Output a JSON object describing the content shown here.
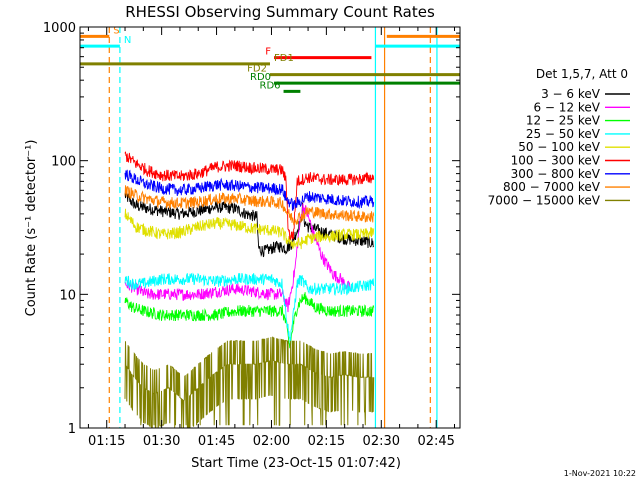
{
  "chart_data": {
    "type": "line",
    "title": "RHESSI Observing Summary Count Rates",
    "xlabel": "Start Time (23-Oct-15 01:07:42)",
    "ylabel": "Count Rate (s⁻¹ detector⁻¹)",
    "y_scale": "log",
    "ylim": [
      1,
      1000
    ],
    "y_ticks": [
      {
        "value": 1,
        "label": "1"
      },
      {
        "value": 10,
        "label": "10"
      },
      {
        "value": 100,
        "label": "100"
      },
      {
        "value": 1000,
        "label": "1000"
      }
    ],
    "xlim_minutes": [
      67.7,
      171.5
    ],
    "x_ticks": [
      {
        "minute": 75,
        "label": "01:15"
      },
      {
        "minute": 90,
        "label": "01:30"
      },
      {
        "minute": 105,
        "label": "01:45"
      },
      {
        "minute": 120,
        "label": "02:00"
      },
      {
        "minute": 135,
        "label": "02:15"
      },
      {
        "minute": 150,
        "label": "02:30"
      },
      {
        "minute": 165,
        "label": "02:45"
      }
    ],
    "legend": {
      "title": "Det 1,5,7, Att 0",
      "position": "right",
      "entries": [
        {
          "label": "3 − 6 keV",
          "color": "#000000"
        },
        {
          "label": "6 − 12 keV",
          "color": "#ff00ff"
        },
        {
          "label": "12 − 25 keV",
          "color": "#00ff00"
        },
        {
          "label": "25 − 50 keV",
          "color": "#00ffff"
        },
        {
          "label": "50 − 100 keV",
          "color": "#e0e000"
        },
        {
          "label": "100 − 300 keV",
          "color": "#ff0000"
        },
        {
          "label": "300 − 800 keV",
          "color": "#0000ff"
        },
        {
          "label": "800 − 7000 keV",
          "color": "#ff8000"
        },
        {
          "label": "7000 − 15000 keV",
          "color": "#808000"
        }
      ]
    },
    "series": [
      {
        "name": "3 − 6 keV",
        "color": "#000000",
        "x": [
          80,
          83,
          86,
          90,
          95,
          100,
          105,
          110,
          113,
          116,
          116.5,
          118,
          120,
          122,
          124,
          125.5,
          126,
          127,
          128,
          128.5,
          129,
          130,
          133,
          136,
          140,
          145,
          148
        ],
        "y": [
          55,
          46,
          44,
          42,
          40,
          42,
          45,
          44,
          40,
          38,
          22,
          21,
          22,
          23,
          22,
          24,
          26,
          30,
          35,
          45,
          35,
          32,
          30,
          28,
          26,
          25,
          24
        ]
      },
      {
        "name": "6 − 12 keV",
        "color": "#ff00ff",
        "x": [
          80,
          83,
          86,
          90,
          95,
          100,
          105,
          110,
          115,
          120,
          123,
          124.5,
          125.5,
          126.5,
          127.5,
          128.5,
          129.5,
          130.5,
          131.5,
          132.5,
          133.5,
          135,
          137,
          139,
          140,
          141.5
        ],
        "y": [
          12,
          11,
          10,
          10,
          10,
          10,
          10.5,
          11,
          10.5,
          10,
          10,
          8,
          11,
          16,
          30,
          45,
          42,
          35,
          28,
          24,
          20,
          17,
          14,
          13,
          12,
          11
        ]
      },
      {
        "name": "12 − 25 keV",
        "color": "#00ff00",
        "x": [
          80,
          82,
          85,
          90,
          95,
          100,
          105,
          110,
          115,
          120,
          123,
          124,
          125,
          126,
          127,
          128,
          129,
          132,
          136,
          140,
          145,
          148
        ],
        "y": [
          9,
          8,
          7.5,
          7,
          7,
          7,
          7,
          7.5,
          7.5,
          7.5,
          7.5,
          6,
          4,
          6,
          8,
          9,
          9.5,
          8,
          7.5,
          7.5,
          7.5,
          7.5
        ]
      },
      {
        "name": "25 − 50 keV",
        "color": "#00ffff",
        "x": [
          80,
          82,
          85,
          90,
          95,
          100,
          105,
          110,
          115,
          120,
          123,
          124,
          125,
          126,
          127,
          128,
          130,
          133,
          137,
          140,
          145,
          148
        ],
        "y": [
          13,
          12,
          12,
          13,
          13,
          13,
          12.5,
          13,
          13,
          13,
          12,
          7,
          4.5,
          7,
          12,
          13,
          11,
          11,
          11,
          11,
          11.5,
          12
        ]
      },
      {
        "name": "50 − 100 keV",
        "color": "#e0e000",
        "x": [
          80,
          83,
          86,
          90,
          95,
          100,
          105,
          110,
          115,
          120,
          123,
          124,
          126,
          128,
          130,
          133,
          136,
          140,
          145,
          148
        ],
        "y": [
          40,
          32,
          30,
          28,
          29,
          32,
          34,
          33,
          31,
          30,
          29,
          26,
          24,
          24,
          26,
          27,
          27,
          28,
          28,
          29
        ]
      },
      {
        "name": "100 − 300 keV",
        "color": "#ff0000",
        "x": [
          80,
          83,
          86,
          90,
          95,
          100,
          105,
          110,
          115,
          120,
          123,
          124,
          124.6,
          125.2,
          126,
          127,
          130,
          135,
          140,
          145,
          148
        ],
        "y": [
          110,
          95,
          85,
          78,
          76,
          80,
          90,
          92,
          88,
          86,
          85,
          70,
          30,
          27,
          28,
          70,
          75,
          72,
          72,
          73,
          75
        ]
      },
      {
        "name": "300 − 800 keV",
        "color": "#0000ff",
        "x": [
          80,
          83,
          86,
          90,
          95,
          100,
          105,
          110,
          115,
          120,
          123,
          124,
          126,
          128,
          130,
          135,
          140,
          145,
          148
        ],
        "y": [
          80,
          72,
          66,
          62,
          60,
          62,
          66,
          65,
          63,
          62,
          61,
          52,
          46,
          50,
          54,
          52,
          50,
          49,
          50
        ]
      },
      {
        "name": "800 − 7000 keV",
        "color": "#ff8000",
        "x": [
          80,
          83,
          86,
          90,
          95,
          100,
          105,
          110,
          115,
          120,
          123,
          124,
          126,
          128,
          130,
          135,
          140,
          145,
          148
        ],
        "y": [
          60,
          55,
          52,
          49,
          48,
          49,
          52,
          52,
          50,
          49,
          48,
          42,
          36,
          38,
          42,
          40,
          39,
          38,
          38
        ]
      },
      {
        "name": "7000 − 15000 keV",
        "color": "#808000",
        "x": [
          80,
          82,
          85,
          88,
          92,
          96,
          100,
          104,
          108,
          112,
          116,
          120,
          124,
          128,
          132,
          136,
          140,
          144,
          148
        ],
        "y": [
          3,
          2.5,
          2,
          1.8,
          2,
          1.6,
          2,
          2.5,
          3,
          3,
          3,
          3.2,
          3,
          3,
          2.6,
          2.4,
          2.5,
          2.4,
          2.4
        ]
      }
    ],
    "vertical_lines": [
      {
        "minute": 75.7,
        "color": "#ff8000",
        "style": "dashed"
      },
      {
        "minute": 78.6,
        "color": "#00ffff",
        "style": "dashed"
      },
      {
        "minute": 148.4,
        "color": "#00ffff",
        "style": "solid"
      },
      {
        "minute": 150.9,
        "color": "#ff8000",
        "style": "solid"
      },
      {
        "minute": 163.4,
        "color": "#ff8000",
        "style": "dashed"
      },
      {
        "minute": 165.2,
        "color": "#00ffff",
        "style": "solid"
      }
    ],
    "flag_bars": [
      {
        "label": "S",
        "color": "#ff8000",
        "segments": [
          [
            67.7,
            75.7
          ],
          [
            151.5,
            171.5
          ]
        ],
        "y": 850
      },
      {
        "label": "N",
        "color": "#00ffff",
        "segments": [
          [
            67.7,
            78.6
          ],
          [
            148.4,
            171.5
          ]
        ],
        "y": 720
      },
      {
        "label": "F",
        "color": "#ff0000",
        "segments": [
          [
            120.7,
            147.3
          ]
        ],
        "y": 590
      },
      {
        "label": "FD1",
        "color": "#808000",
        "segments": [
          [
            67.7,
            119.6
          ]
        ],
        "y": 530
      },
      {
        "label": "FD2",
        "color": "#808000",
        "segments": [
          [
            119.6,
            171.5
          ]
        ],
        "y": 440
      },
      {
        "label": "RD0",
        "color": "#008000",
        "segments": [
          [
            120.7,
            171.5
          ]
        ],
        "y": 380
      },
      {
        "label": "RD6",
        "color": "#008000",
        "segments": [
          [
            123.3,
            127.9
          ]
        ],
        "y": 330
      }
    ]
  },
  "footer": {
    "date_label": "1-Nov-2021 10:22"
  }
}
